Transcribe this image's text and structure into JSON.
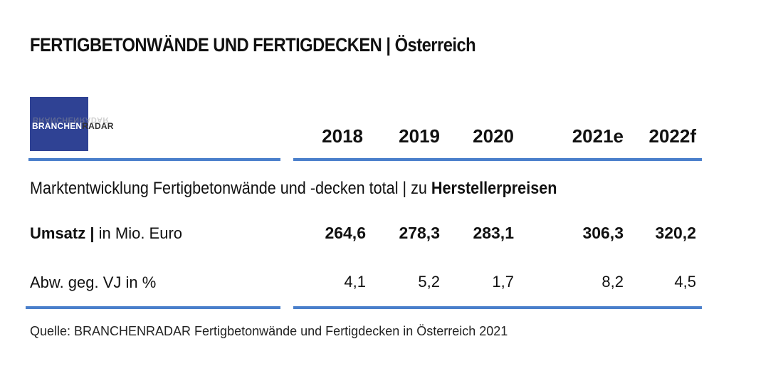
{
  "title": "FERTIGBETONWÄNDE UND FERTIGDECKEN | Österreich",
  "logo": {
    "part1": "BRANCHEN",
    "part2": "RADAR",
    "brand_color": "#2f4294"
  },
  "years": [
    "2018",
    "2019",
    "2020",
    "2021e",
    "2022f"
  ],
  "subtitle": {
    "prefix": "Marktentwicklung Fertigbetonwände und -decken total | zu ",
    "emphasis": "Herstellerpreisen"
  },
  "rows": {
    "umsatz": {
      "label_bold": "Umsatz |",
      "label_rest": " in Mio. Euro",
      "values": [
        "264,6",
        "278,3",
        "283,1",
        "306,3",
        "320,2"
      ]
    },
    "abw": {
      "label": "Abw. geg. VJ in %",
      "values": [
        "4,1",
        "5,2",
        "1,7",
        "8,2",
        "4,5"
      ]
    }
  },
  "source": "Quelle: BRANCHENRADAR Fertigbetonwände und Fertigdecken in Österreich 2021",
  "accent_color": "#4a7fcb"
}
